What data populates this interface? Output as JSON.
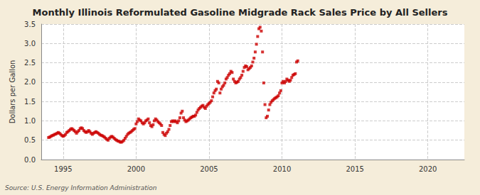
{
  "chart_data": {
    "type": "scatter",
    "title": "Monthly Illinois Reformulated Gasoline Midgrade Rack Sales Price by All Sellers",
    "ylabel": "Dollars per Gallon",
    "annotations": [
      "Source: U.S. Energy Information Administration"
    ],
    "color": "#cc0000",
    "marker": "square",
    "grid": true,
    "xlim": [
      1993.5,
      2022.5
    ],
    "xticks": [
      1995,
      2000,
      2005,
      2010,
      2015,
      2020
    ],
    "ylim": [
      0.0,
      3.5
    ],
    "yticks": [
      {
        "value": 0.0,
        "label": "0.0"
      },
      0.5,
      {
        "value": 1.0,
        "label": "1.0"
      },
      1.5,
      {
        "value": 2.0,
        "label": "2.0"
      },
      2.5,
      {
        "value": 3.0,
        "label": "3.0"
      },
      3.5
    ],
    "x": [
      1994.0,
      1994.083,
      1994.167,
      1994.25,
      1994.333,
      1994.417,
      1994.5,
      1994.583,
      1994.667,
      1994.75,
      1994.833,
      1994.917,
      1995.0,
      1995.083,
      1995.167,
      1995.25,
      1995.333,
      1995.417,
      1995.5,
      1995.583,
      1995.667,
      1995.75,
      1995.833,
      1995.917,
      1996.0,
      1996.083,
      1996.167,
      1996.25,
      1996.333,
      1996.417,
      1996.5,
      1996.583,
      1996.667,
      1996.75,
      1996.833,
      1996.917,
      1997.0,
      1997.083,
      1997.167,
      1997.25,
      1997.333,
      1997.417,
      1997.5,
      1997.583,
      1997.667,
      1997.75,
      1997.833,
      1997.917,
      1998.0,
      1998.083,
      1998.167,
      1998.25,
      1998.333,
      1998.417,
      1998.5,
      1998.583,
      1998.667,
      1998.75,
      1998.833,
      1998.917,
      1999.0,
      1999.083,
      1999.167,
      1999.25,
      1999.333,
      1999.417,
      1999.5,
      1999.583,
      1999.667,
      1999.75,
      1999.833,
      1999.917,
      2000.0,
      2000.083,
      2000.167,
      2000.25,
      2000.333,
      2000.417,
      2000.5,
      2000.583,
      2000.667,
      2000.75,
      2000.833,
      2000.917,
      2001.0,
      2001.083,
      2001.167,
      2001.25,
      2001.333,
      2001.417,
      2001.5,
      2001.583,
      2001.667,
      2001.75,
      2001.833,
      2001.917,
      2002.0,
      2002.083,
      2002.167,
      2002.25,
      2002.333,
      2002.417,
      2002.5,
      2002.583,
      2002.667,
      2002.75,
      2002.833,
      2002.917,
      2003.0,
      2003.083,
      2003.167,
      2003.25,
      2003.333,
      2003.417,
      2003.5,
      2003.583,
      2003.667,
      2003.75,
      2003.833,
      2003.917,
      2004.0,
      2004.083,
      2004.167,
      2004.25,
      2004.333,
      2004.417,
      2004.5,
      2004.583,
      2004.667,
      2004.75,
      2004.833,
      2004.917,
      2005.0,
      2005.083,
      2005.167,
      2005.25,
      2005.333,
      2005.417,
      2005.5,
      2005.583,
      2005.667,
      2005.75,
      2005.833,
      2005.917,
      2006.0,
      2006.083,
      2006.167,
      2006.25,
      2006.333,
      2006.417,
      2006.5,
      2006.583,
      2006.667,
      2006.75,
      2006.833,
      2006.917,
      2007.0,
      2007.083,
      2007.167,
      2007.25,
      2007.333,
      2007.417,
      2007.5,
      2007.583,
      2007.667,
      2007.75,
      2007.833,
      2007.917,
      2008.0,
      2008.083,
      2008.167,
      2008.25,
      2008.333,
      2008.417,
      2008.5,
      2008.583,
      2008.667,
      2008.75,
      2008.833,
      2008.917,
      2009.0,
      2009.083,
      2009.167,
      2009.25,
      2009.333,
      2009.417,
      2009.5,
      2009.583,
      2009.667,
      2009.75,
      2009.833,
      2009.917,
      2010.0,
      2010.083,
      2010.167,
      2010.25,
      2010.333,
      2010.417,
      2010.5,
      2010.583,
      2010.667,
      2010.75,
      2010.833,
      2010.917,
      2011.0,
      2011.083
    ],
    "values": [
      0.57,
      0.58,
      0.6,
      0.62,
      0.63,
      0.65,
      0.66,
      0.68,
      0.7,
      0.68,
      0.65,
      0.62,
      0.6,
      0.62,
      0.65,
      0.7,
      0.72,
      0.75,
      0.78,
      0.8,
      0.78,
      0.75,
      0.72,
      0.68,
      0.72,
      0.75,
      0.8,
      0.82,
      0.8,
      0.75,
      0.72,
      0.7,
      0.72,
      0.75,
      0.72,
      0.68,
      0.65,
      0.68,
      0.7,
      0.72,
      0.7,
      0.68,
      0.65,
      0.63,
      0.62,
      0.6,
      0.58,
      0.55,
      0.52,
      0.5,
      0.55,
      0.58,
      0.6,
      0.58,
      0.55,
      0.52,
      0.5,
      0.48,
      0.47,
      0.45,
      0.45,
      0.47,
      0.5,
      0.55,
      0.6,
      0.65,
      0.68,
      0.7,
      0.72,
      0.75,
      0.78,
      0.8,
      0.92,
      0.98,
      1.05,
      1.02,
      1.0,
      0.95,
      0.92,
      0.95,
      1.0,
      1.02,
      1.05,
      0.95,
      0.88,
      0.85,
      0.9,
      1.0,
      1.05,
      1.02,
      0.98,
      0.95,
      0.92,
      0.88,
      0.7,
      0.65,
      0.62,
      0.68,
      0.72,
      0.78,
      0.88,
      0.98,
      1.0,
      0.98,
      1.0,
      0.98,
      0.95,
      1.0,
      1.08,
      1.2,
      1.25,
      1.08,
      1.02,
      0.98,
      1.0,
      1.02,
      1.05,
      1.08,
      1.1,
      1.12,
      1.12,
      1.15,
      1.22,
      1.28,
      1.32,
      1.35,
      1.38,
      1.4,
      1.35,
      1.32,
      1.38,
      1.42,
      1.45,
      1.48,
      1.52,
      1.62,
      1.72,
      1.78,
      1.82,
      2.02,
      1.98,
      1.72,
      1.82,
      1.88,
      1.92,
      1.98,
      2.08,
      2.12,
      2.18,
      2.22,
      2.28,
      2.25,
      2.08,
      2.02,
      1.98,
      2.0,
      2.02,
      2.08,
      2.12,
      2.18,
      2.28,
      2.38,
      2.42,
      2.4,
      2.32,
      2.35,
      2.38,
      2.42,
      2.52,
      2.62,
      2.78,
      2.98,
      3.18,
      3.38,
      3.42,
      3.32,
      2.78,
      1.98,
      1.42,
      1.08,
      1.12,
      1.28,
      1.42,
      1.48,
      1.52,
      1.55,
      1.58,
      1.6,
      1.62,
      1.65,
      1.72,
      1.78,
      1.98,
      2.02,
      1.98,
      2.02,
      2.08,
      2.05,
      2.02,
      2.05,
      2.12,
      2.18,
      2.2,
      2.22,
      2.52,
      2.55
    ]
  }
}
